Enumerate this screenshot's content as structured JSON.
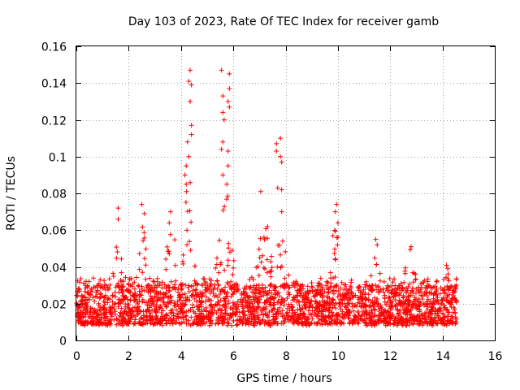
{
  "chart_data": {
    "type": "scatter",
    "title": "Day 103 of 2023, Rate Of TEC Index for receiver gamb",
    "xlabel": "GPS time / hours",
    "ylabel": "ROTI / TECUs",
    "xlim": [
      0,
      16
    ],
    "ylim": [
      0,
      0.16
    ],
    "grid": true,
    "marker": "+",
    "color": "#ff0000",
    "x_ticks": [
      "0",
      "2",
      "4",
      "6",
      "8",
      "10",
      "12",
      "14",
      "16"
    ],
    "x_tick_values": [
      0,
      2,
      4,
      6,
      8,
      10,
      12,
      14,
      16
    ],
    "y_ticks": [
      "0",
      "0.02",
      "0.04",
      "0.06",
      "0.08",
      "0.1",
      "0.12",
      "0.14",
      "0.16"
    ],
    "y_tick_values": [
      0,
      0.02,
      0.04,
      0.06,
      0.08,
      0.1,
      0.12,
      0.14,
      0.16
    ],
    "series": [
      {
        "name": "ROTI",
        "x_range": [
          0.0,
          14.55
        ],
        "baseline_band": [
          0.005,
          0.03
        ],
        "notable_points": [
          {
            "x": 4.35,
            "y": 0.147
          },
          {
            "x": 4.3,
            "y": 0.141
          },
          {
            "x": 4.4,
            "y": 0.139
          },
          {
            "x": 4.35,
            "y": 0.13
          },
          {
            "x": 4.4,
            "y": 0.117
          },
          {
            "x": 4.4,
            "y": 0.112
          },
          {
            "x": 4.25,
            "y": 0.108
          },
          {
            "x": 4.3,
            "y": 0.1
          },
          {
            "x": 4.2,
            "y": 0.095
          },
          {
            "x": 4.15,
            "y": 0.09
          },
          {
            "x": 4.2,
            "y": 0.085
          },
          {
            "x": 5.55,
            "y": 0.147
          },
          {
            "x": 5.85,
            "y": 0.145
          },
          {
            "x": 5.85,
            "y": 0.137
          },
          {
            "x": 5.6,
            "y": 0.133
          },
          {
            "x": 5.8,
            "y": 0.13
          },
          {
            "x": 5.85,
            "y": 0.127
          },
          {
            "x": 5.65,
            "y": 0.12
          },
          {
            "x": 5.6,
            "y": 0.124
          },
          {
            "x": 5.6,
            "y": 0.108
          },
          {
            "x": 5.55,
            "y": 0.104
          },
          {
            "x": 5.8,
            "y": 0.103
          },
          {
            "x": 5.8,
            "y": 0.095
          },
          {
            "x": 5.6,
            "y": 0.09
          },
          {
            "x": 5.75,
            "y": 0.085
          },
          {
            "x": 7.8,
            "y": 0.11
          },
          {
            "x": 7.65,
            "y": 0.107
          },
          {
            "x": 7.65,
            "y": 0.103
          },
          {
            "x": 7.8,
            "y": 0.1
          },
          {
            "x": 7.85,
            "y": 0.097
          },
          {
            "x": 7.7,
            "y": 0.083
          },
          {
            "x": 7.85,
            "y": 0.082
          },
          {
            "x": 7.05,
            "y": 0.081
          },
          {
            "x": 7.85,
            "y": 0.07
          },
          {
            "x": 9.95,
            "y": 0.074
          },
          {
            "x": 9.9,
            "y": 0.07
          },
          {
            "x": 10.0,
            "y": 0.064
          },
          {
            "x": 1.6,
            "y": 0.072
          },
          {
            "x": 1.6,
            "y": 0.066
          },
          {
            "x": 2.5,
            "y": 0.074
          },
          {
            "x": 2.6,
            "y": 0.069
          },
          {
            "x": 3.6,
            "y": 0.07
          },
          {
            "x": 3.55,
            "y": 0.064
          },
          {
            "x": 11.45,
            "y": 0.055
          },
          {
            "x": 11.5,
            "y": 0.052
          },
          {
            "x": 12.8,
            "y": 0.051
          },
          {
            "x": 14.2,
            "y": 0.039
          }
        ]
      }
    ]
  }
}
